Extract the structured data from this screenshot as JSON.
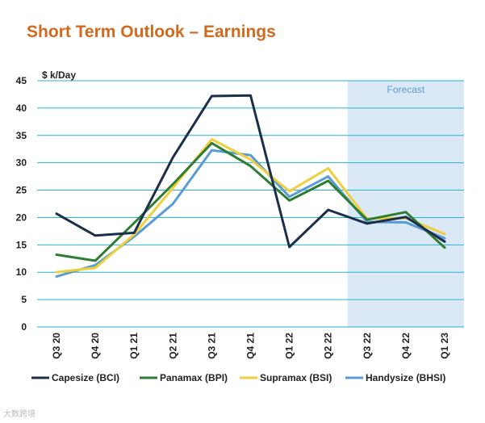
{
  "chart_data": {
    "type": "line",
    "title": "Short Term Outlook – Earnings",
    "ylabel": "$ k/Day",
    "xlabel": "",
    "ylim": [
      0,
      45
    ],
    "yticks": [
      0,
      5,
      10,
      15,
      20,
      25,
      30,
      35,
      40,
      45
    ],
    "grid": true,
    "categories": [
      "Q3 20",
      "Q4 20",
      "Q1 21",
      "Q2 21",
      "Q3 21",
      "Q4 21",
      "Q1 22",
      "Q2 22",
      "Q3 22",
      "Q4 22",
      "Q1 23"
    ],
    "forecast": {
      "label": "Forecast",
      "from": "Q3 22",
      "to": "Q1 23",
      "color": "#dbe8f5"
    },
    "legend_position": "bottom",
    "series": [
      {
        "name": "Capesize (BCI)",
        "color": "#1b2f4b",
        "values": [
          20.7,
          16.7,
          17.2,
          31.0,
          42.2,
          42.3,
          14.6,
          21.4,
          18.9,
          20.1,
          15.6
        ]
      },
      {
        "name": "Panamax (BPI)",
        "color": "#2e7d32",
        "values": [
          13.2,
          12.1,
          19.0,
          26.1,
          33.6,
          29.4,
          23.1,
          26.7,
          19.6,
          21.0,
          14.5
        ]
      },
      {
        "name": "Supramax (BSI)",
        "color": "#efcf3e",
        "values": [
          10.0,
          10.8,
          16.9,
          25.4,
          34.3,
          30.6,
          24.8,
          29.0,
          19.8,
          19.9,
          17.0
        ]
      },
      {
        "name": "Handysize (BHSI)",
        "color": "#5b9bd5",
        "values": [
          9.2,
          11.3,
          16.5,
          22.5,
          32.3,
          31.4,
          23.8,
          27.5,
          19.2,
          19.1,
          16.2
        ]
      }
    ]
  },
  "watermark": "大数跨境"
}
